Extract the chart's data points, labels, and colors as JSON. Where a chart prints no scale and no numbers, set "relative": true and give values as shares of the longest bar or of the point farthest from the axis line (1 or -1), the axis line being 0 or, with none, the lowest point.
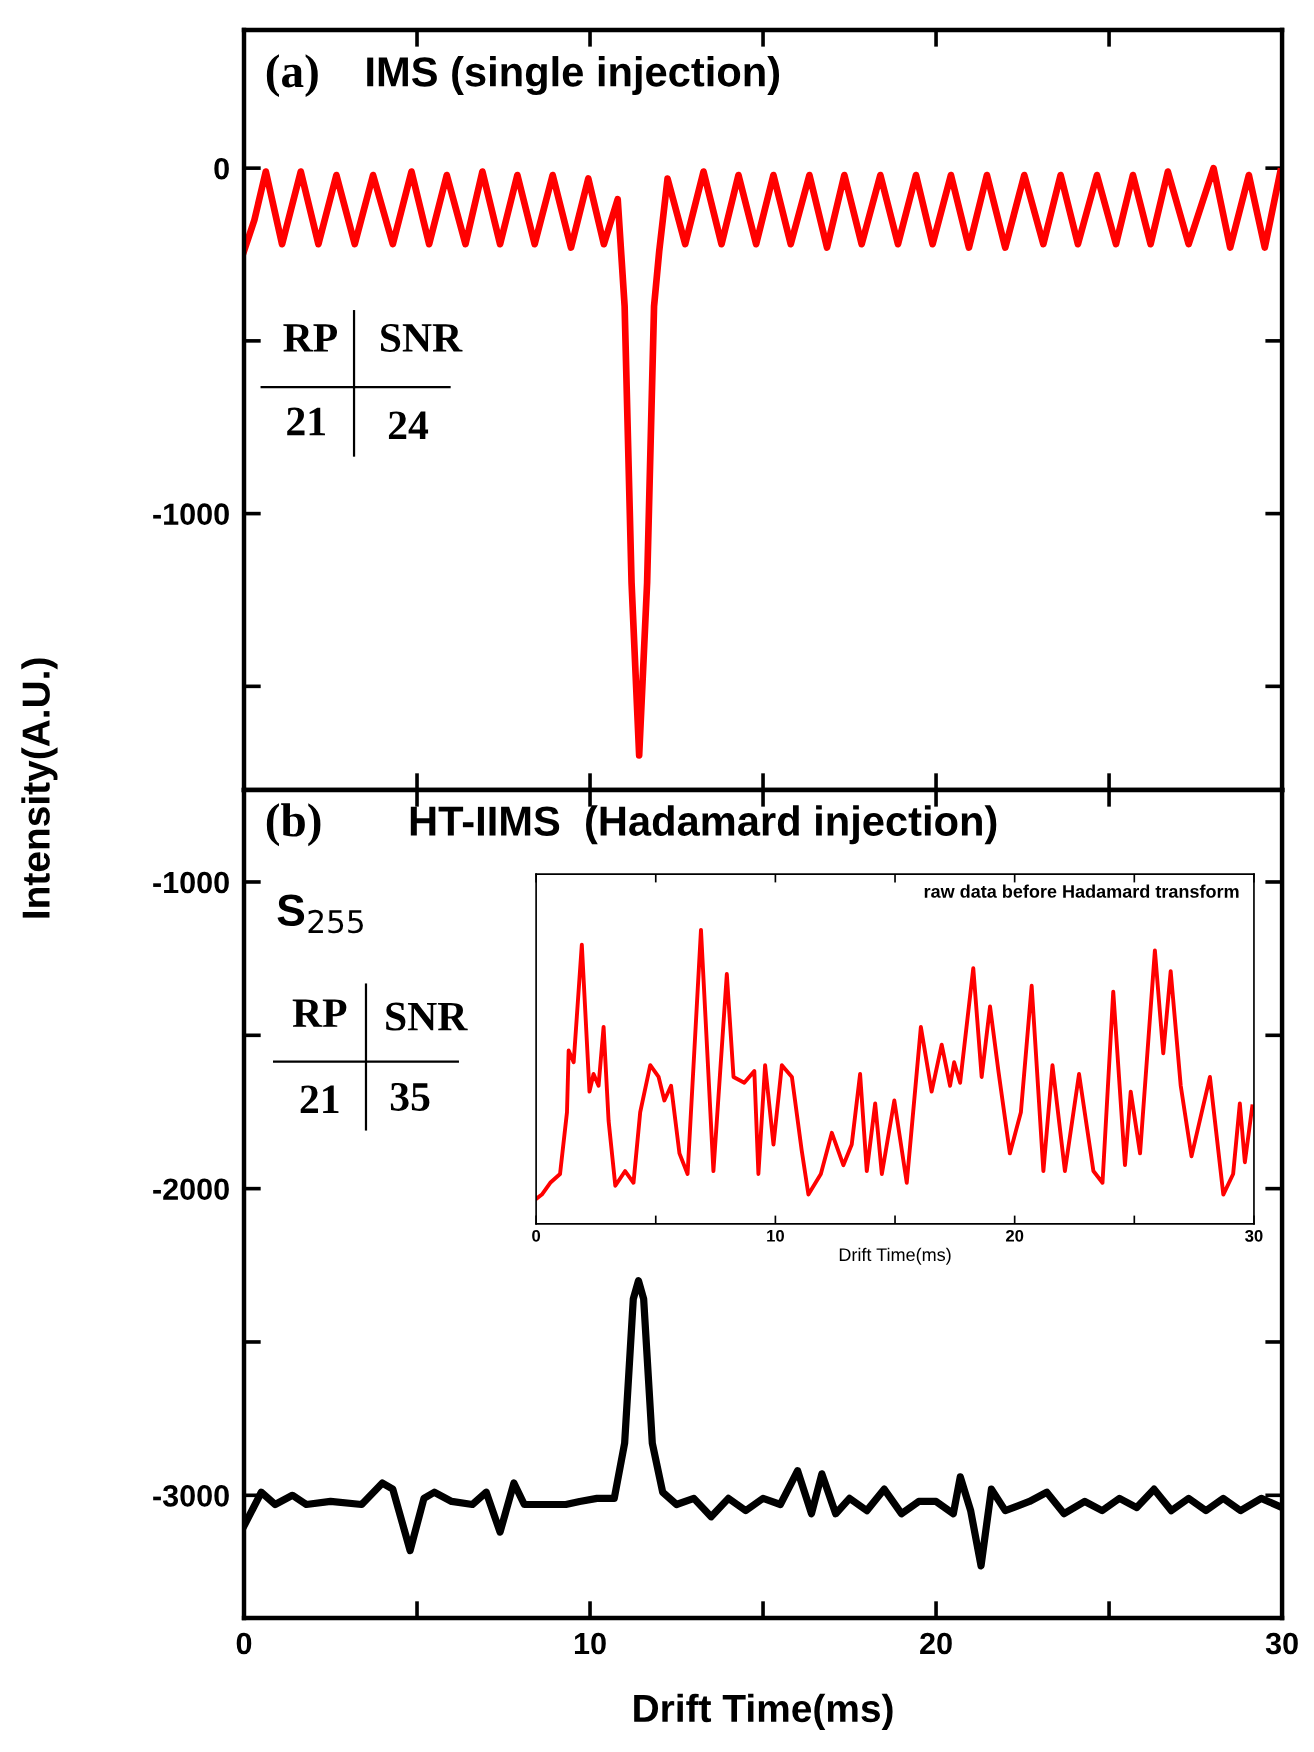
{
  "chart_data": [
    {
      "type": "line",
      "ylabel": "Intensity(A.U.)",
      "xlim": [
        0,
        30
      ],
      "ylim": [
        -1800,
        400
      ],
      "xticks": [
        {
          "value": 0,
          "label": null
        },
        {
          "value": 5,
          "label": null
        },
        {
          "value": 10,
          "label": null
        },
        {
          "value": 15,
          "label": null
        },
        {
          "value": 20,
          "label": null
        },
        {
          "value": 25,
          "label": null
        },
        {
          "value": 30,
          "label": null
        }
      ],
      "yticks": [
        0,
        {
          "value": -500,
          "label": null
        },
        -1000,
        {
          "value": -1500,
          "label": null
        }
      ],
      "tick_labels": "y",
      "grid": false,
      "legend": false,
      "marker": "none",
      "line_style": "solid",
      "annotations": [
        "(a)",
        "IMS (single injection)",
        "RP",
        "SNR",
        "21",
        "24"
      ],
      "series": [
        {
          "color": "#ff0000",
          "x": [
            0,
            0.3,
            0.63,
            1.1,
            1.64,
            2.15,
            2.67,
            3.2,
            3.73,
            4.3,
            4.84,
            5.35,
            5.86,
            6.4,
            6.89,
            7.4,
            7.9,
            8.4,
            8.92,
            9.45,
            9.95,
            10.4,
            10.8,
            11.0,
            11.2,
            11.42,
            11.65,
            11.85,
            12.0,
            12.24,
            12.75,
            13.28,
            13.8,
            14.29,
            14.8,
            15.3,
            15.8,
            16.34,
            16.85,
            17.35,
            17.85,
            18.39,
            18.9,
            19.42,
            19.9,
            20.43,
            20.95,
            21.47,
            22.0,
            22.55,
            23.1,
            23.6,
            24.1,
            24.65,
            25.2,
            25.69,
            26.2,
            26.7,
            27.3,
            28.02,
            28.5,
            29.04,
            29.5,
            29.95
          ],
          "values": [
            -240,
            -150,
            -10,
            -220,
            -10,
            -220,
            -20,
            -220,
            -20,
            -220,
            -10,
            -220,
            -20,
            -220,
            -10,
            -220,
            -20,
            -220,
            -20,
            -230,
            -30,
            -220,
            -90,
            -400,
            -1200,
            -1700,
            -1200,
            -400,
            -240,
            -30,
            -220,
            -10,
            -220,
            -20,
            -220,
            -20,
            -220,
            -20,
            -230,
            -20,
            -220,
            -20,
            -220,
            -20,
            -220,
            -20,
            -230,
            -20,
            -230,
            -20,
            -220,
            -20,
            -220,
            -20,
            -220,
            -20,
            -220,
            -10,
            -220,
            0,
            -230,
            -20,
            -230,
            -10
          ]
        }
      ]
    },
    {
      "type": "line",
      "xlabel": "Drift Time(ms)",
      "xlim": [
        0,
        30
      ],
      "ylim": [
        -3400,
        -700
      ],
      "xticks": [
        0,
        {
          "value": 5,
          "label": null
        },
        10,
        {
          "value": 15,
          "label": null
        },
        20,
        {
          "value": 25,
          "label": null
        },
        30
      ],
      "yticks": [
        -1000,
        {
          "value": -1500,
          "label": null
        },
        -2000,
        {
          "value": -2500,
          "label": null
        },
        -3000
      ],
      "grid": false,
      "legend": false,
      "marker": "none",
      "line_style": "solid",
      "annotations": [
        "(b)",
        "HT-IIMS  (Hadamard injection)",
        "S$_{255}$",
        "RP",
        "SNR",
        "21",
        "35"
      ],
      "series": [
        {
          "color": "#000000",
          "x": [
            0,
            0.5,
            0.9,
            1.4,
            1.8,
            2.5,
            3.4,
            4.0,
            4.3,
            4.8,
            5.2,
            5.5,
            6.0,
            6.6,
            7.0,
            7.4,
            7.8,
            8.1,
            8.7,
            9.3,
            9.7,
            10.2,
            10.7,
            11.0,
            11.25,
            11.4,
            11.55,
            11.8,
            12.1,
            12.5,
            13.0,
            13.5,
            14.0,
            14.5,
            15.0,
            15.5,
            16.0,
            16.4,
            16.7,
            17.1,
            17.5,
            18.0,
            18.5,
            19.0,
            19.5,
            20.0,
            20.5,
            20.7,
            21.0,
            21.3,
            21.6,
            22.0,
            22.7,
            23.2,
            23.7,
            24.3,
            24.8,
            25.3,
            25.8,
            26.3,
            26.8,
            27.3,
            27.8,
            28.3,
            28.8,
            29.4,
            30
          ],
          "values": [
            -3100,
            -2990,
            -3030,
            -3000,
            -3030,
            -3020,
            -3030,
            -2960,
            -2980,
            -3180,
            -3010,
            -2990,
            -3020,
            -3030,
            -2990,
            -3120,
            -2960,
            -3030,
            -3030,
            -3030,
            -3020,
            -3010,
            -3010,
            -2830,
            -2360,
            -2300,
            -2360,
            -2830,
            -2990,
            -3030,
            -3010,
            -3070,
            -3010,
            -3050,
            -3010,
            -3030,
            -2920,
            -3060,
            -2930,
            -3060,
            -3010,
            -3050,
            -2980,
            -3060,
            -3020,
            -3020,
            -3060,
            -2940,
            -3050,
            -3230,
            -2980,
            -3050,
            -3020,
            -2990,
            -3060,
            -3020,
            -3050,
            -3010,
            -3040,
            -2980,
            -3050,
            -3010,
            -3050,
            -3010,
            -3050,
            -3010,
            -3040
          ]
        }
      ]
    },
    {
      "type": "line",
      "title": "raw data before Hadamard transform",
      "xlabel": "Drift Time(ms)",
      "relative": true,
      "xlim": [
        0,
        30
      ],
      "xticks": [
        0,
        {
          "value": 5,
          "label": null
        },
        10,
        {
          "value": 15,
          "label": null
        },
        20,
        {
          "value": 25,
          "label": null
        },
        30
      ],
      "tick_labels": "x",
      "grid": false,
      "legend": false,
      "marker": "none",
      "line_style": "solid",
      "series": [
        {
          "color": "#ff0000",
          "x": [
            0,
            0.24,
            0.59,
            1.0,
            1.29,
            1.36,
            1.57,
            1.91,
            2.23,
            2.4,
            2.61,
            2.82,
            3.03,
            3.31,
            3.72,
            4.07,
            4.35,
            4.77,
            5.12,
            5.36,
            5.64,
            5.99,
            6.33,
            6.89,
            7.41,
            7.97,
            8.25,
            8.7,
            9.12,
            9.29,
            9.57,
            9.92,
            10.27,
            10.69,
            11.1,
            11.38,
            11.9,
            12.36,
            12.84,
            13.19,
            13.54,
            13.82,
            14.17,
            14.45,
            14.97,
            15.49,
            16.08,
            16.53,
            16.95,
            17.3,
            17.47,
            17.72,
            18.27,
            18.62,
            18.97,
            19.32,
            19.8,
            20.26,
            20.71,
            21.2,
            21.58,
            22.1,
            22.69,
            23.29,
            23.67,
            24.12,
            24.61,
            24.85,
            25.24,
            25.86,
            26.21,
            26.52,
            26.94,
            27.39,
            28.16,
            28.72,
            29.13,
            29.41,
            29.62,
            29.93
          ],
          "values": [
            0.085,
            0.1,
            0.14,
            0.17,
            0.38,
            0.59,
            0.55,
            0.95,
            0.45,
            0.51,
            0.47,
            0.67,
            0.35,
            0.13,
            0.18,
            0.14,
            0.38,
            0.54,
            0.5,
            0.42,
            0.47,
            0.24,
            0.17,
            1,
            0.18,
            0.85,
            0.5,
            0.48,
            0.52,
            0.17,
            0.54,
            0.27,
            0.54,
            0.5,
            0.25,
            0.1,
            0.17,
            0.31,
            0.2,
            0.27,
            0.51,
            0.18,
            0.41,
            0.17,
            0.42,
            0.14,
            0.67,
            0.45,
            0.61,
            0.47,
            0.55,
            0.48,
            0.87,
            0.5,
            0.74,
            0.52,
            0.24,
            0.38,
            0.81,
            0.18,
            0.54,
            0.18,
            0.51,
            0.18,
            0.14,
            0.79,
            0.2,
            0.45,
            0.24,
            0.93,
            0.58,
            0.86,
            0.47,
            0.23,
            0.5,
            0.1,
            0.17,
            0.41,
            0.21,
            0.4
          ]
        }
      ]
    }
  ]
}
